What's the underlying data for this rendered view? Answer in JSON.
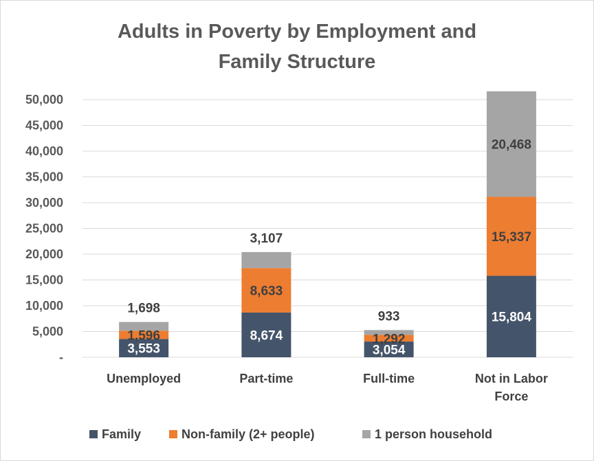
{
  "chart_data": {
    "type": "bar",
    "stacked": true,
    "title_lines": [
      "Adults in Poverty by Employment and",
      "Family Structure"
    ],
    "categories": [
      [
        "Unemployed"
      ],
      [
        "Part-time"
      ],
      [
        "Full-time"
      ],
      [
        "Not in Labor",
        "Force"
      ]
    ],
    "series": [
      {
        "name": "Family",
        "values": [
          3553,
          8674,
          3054,
          15804
        ],
        "labels": [
          "3,553",
          "8,674",
          "3,054",
          "15,804"
        ],
        "color": "#44546a",
        "label_color": "#ffffff"
      },
      {
        "name": "Non-family (2+ people)",
        "values": [
          1596,
          8633,
          1292,
          15337
        ],
        "labels": [
          "1,596",
          "8,633",
          "1,292",
          "15,337"
        ],
        "color": "#ed7d31",
        "label_color": "#404040"
      },
      {
        "name": "1 person household",
        "values": [
          1698,
          3107,
          933,
          20468
        ],
        "labels": [
          "1,698",
          "3,107",
          "933",
          "20,468"
        ],
        "color": "#a5a5a5",
        "label_color": "#404040"
      }
    ],
    "ylim": [
      0,
      50000
    ],
    "yticks": [
      0,
      5000,
      10000,
      15000,
      20000,
      25000,
      30000,
      35000,
      40000,
      45000,
      50000
    ],
    "ytick_labels": [
      "-",
      "5,000",
      "10,000",
      "15,000",
      "20,000",
      "25,000",
      "30,000",
      "35,000",
      "40,000",
      "45,000",
      "50,000"
    ],
    "grid": true,
    "legend_position": "bottom"
  }
}
